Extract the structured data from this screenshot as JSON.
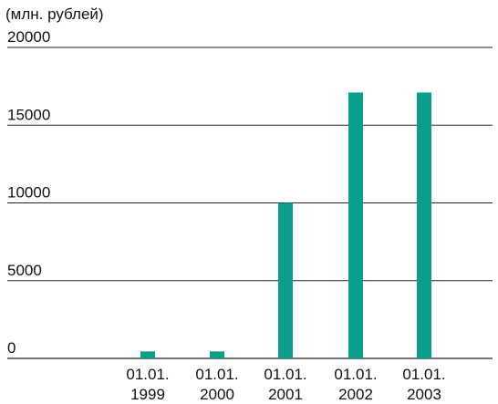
{
  "chart_data": {
    "type": "bar",
    "ylabel": "(млн. рублей)",
    "categories": [
      "01.01.\n1999",
      "01.01.\n2000",
      "01.01.\n2001",
      "01.01.\n2002",
      "01.01.\n2003"
    ],
    "values": [
      450,
      450,
      10000,
      17100,
      17100
    ],
    "ylim": [
      0,
      20000
    ],
    "yticks": [
      0,
      5000,
      10000,
      15000,
      20000
    ],
    "grid": true,
    "bar_color": "#0a9e8c"
  }
}
